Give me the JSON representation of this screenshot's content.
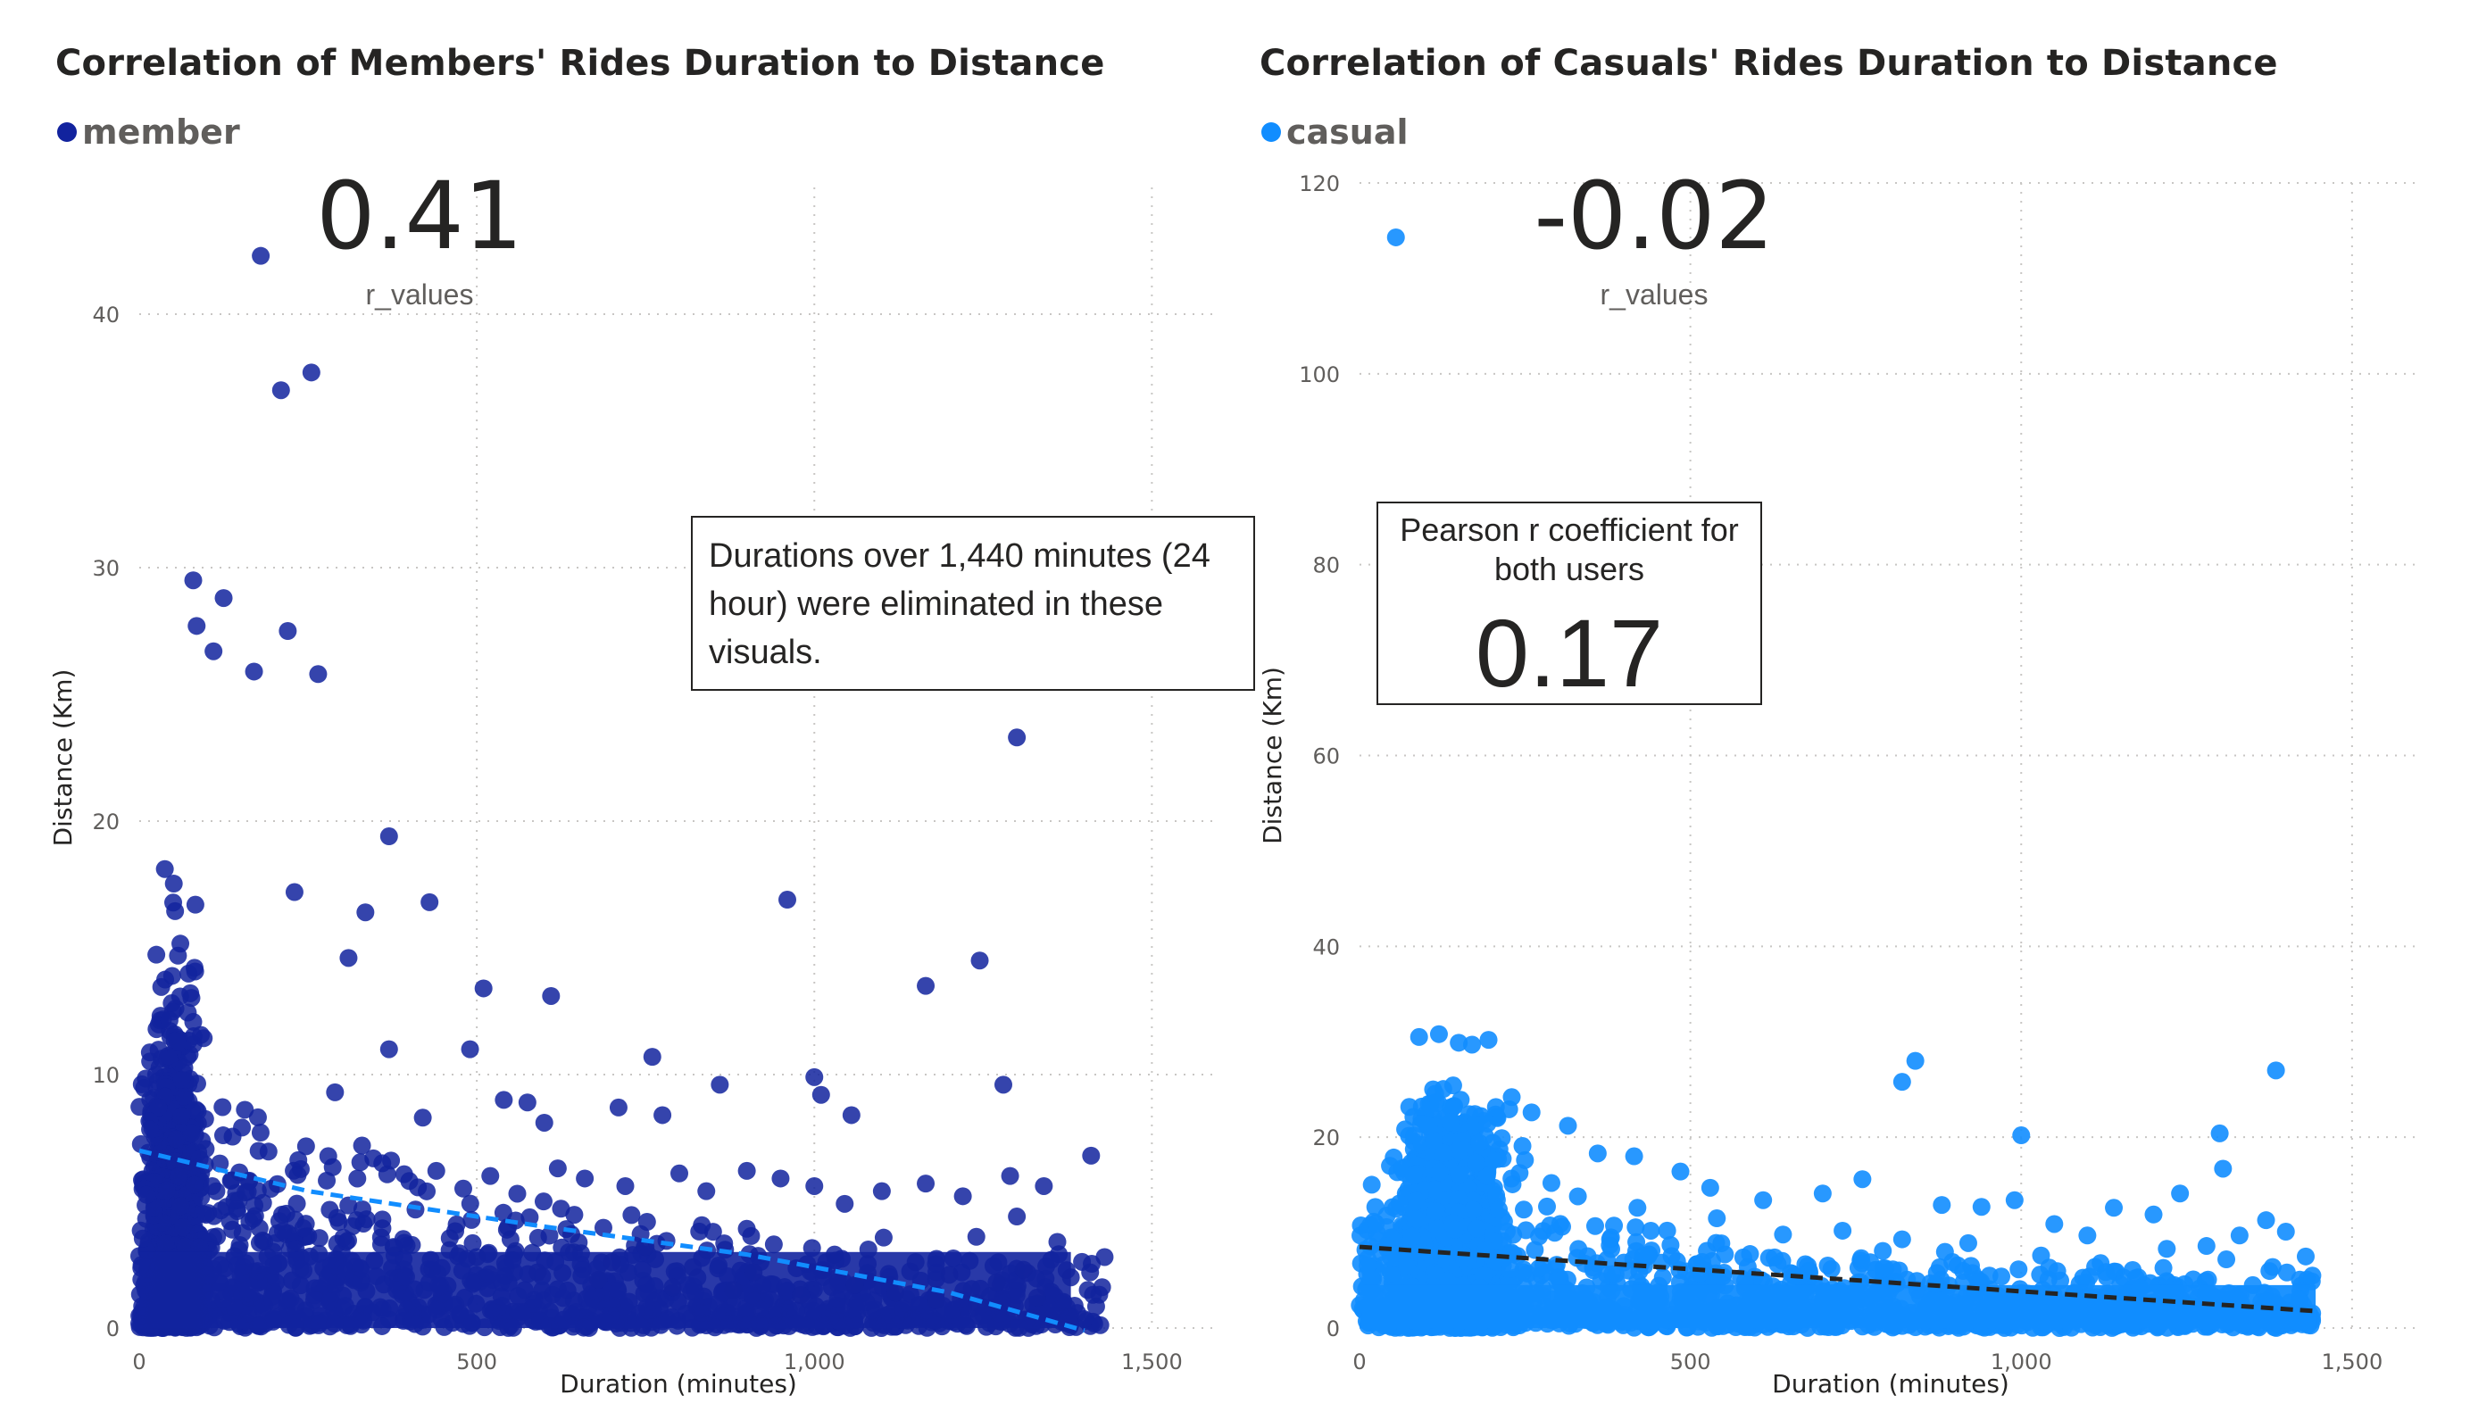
{
  "charts": [
    {
      "id": "members",
      "title": "Correlation of Members' Rides Duration to Distance",
      "legend_label": "member",
      "color": "#12239e",
      "trend_color": "#118dff",
      "kpi_value": "0.41",
      "kpi_caption": "r_values",
      "annotation": "Durations over 1,440 minutes (24 hour) were eliminated in these visuals."
    },
    {
      "id": "casuals",
      "title": "Correlation of Casuals' Rides Duration to Distance",
      "legend_label": "casual",
      "color": "#118dff",
      "trend_color": "#252423",
      "kpi_value": "-0.02",
      "kpi_caption": "r_values",
      "pearson_title": "Pearson r coefficient for both users",
      "pearson_value": "0.17"
    }
  ],
  "chart_data": [
    {
      "type": "scatter",
      "title": "Correlation of Members' Rides Duration to Distance",
      "xlabel": "Duration (minutes)",
      "ylabel": "Distance (Km)",
      "xlim": [
        0,
        1600
      ],
      "ylim": [
        0,
        45
      ],
      "xticks": [
        0,
        500,
        1000,
        1500
      ],
      "xtick_labels": [
        "0",
        "500",
        "1,000",
        "1,500"
      ],
      "yticks": [
        0,
        10,
        20,
        30,
        40
      ],
      "ytick_labels": [
        "0",
        "10",
        "20",
        "30",
        "40"
      ],
      "grid": true,
      "legend": "top-left",
      "series": [
        {
          "name": "member",
          "color": "#12239e",
          "points": [
            [
              180,
              42.3
            ],
            [
              210,
              37
            ],
            [
              255,
              37.7
            ],
            [
              80,
              29.5
            ],
            [
              85,
              27.7
            ],
            [
              125,
              28.8
            ],
            [
              220,
              27.5
            ],
            [
              110,
              26.7
            ],
            [
              170,
              25.9
            ],
            [
              265,
              25.8
            ],
            [
              1300,
              23.3
            ],
            [
              370,
              19.4
            ],
            [
              960,
              16.9
            ],
            [
              430,
              16.8
            ],
            [
              230,
              17.2
            ],
            [
              335,
              16.4
            ],
            [
              1165,
              13.5
            ],
            [
              1245,
              14.5
            ],
            [
              310,
              14.6
            ],
            [
              510,
              13.4
            ],
            [
              610,
              13.1
            ],
            [
              490,
              11
            ],
            [
              760,
              10.7
            ],
            [
              370,
              11
            ],
            [
              1000,
              9.9
            ],
            [
              1280,
              9.6
            ],
            [
              1010,
              9.2
            ],
            [
              860,
              9.6
            ],
            [
              540,
              9
            ],
            [
              575,
              8.9
            ],
            [
              710,
              8.7
            ],
            [
              1055,
              8.4
            ],
            [
              775,
              8.4
            ],
            [
              600,
              8.1
            ],
            [
              420,
              8.3
            ],
            [
              290,
              9.3
            ],
            [
              1410,
              6.8
            ],
            [
              1340,
              5.6
            ],
            [
              1290,
              6
            ],
            [
              1300,
              4.4
            ],
            [
              1220,
              5.2
            ],
            [
              1165,
              5.7
            ],
            [
              1100,
              5.4
            ],
            [
              1045,
              4.9
            ],
            [
              1000,
              5.6
            ],
            [
              950,
              5.9
            ],
            [
              900,
              6.2
            ],
            [
              840,
              5.4
            ],
            [
              800,
              6.1
            ],
            [
              720,
              5.6
            ],
            [
              660,
              5.9
            ],
            [
              620,
              6.3
            ],
            [
              560,
              5.3
            ],
            [
              520,
              6
            ],
            [
              480,
              5.5
            ],
            [
              440,
              6.2
            ],
            [
              400,
              5.8
            ],
            [
              360,
              6.5
            ],
            [
              330,
              7.2
            ],
            [
              1430,
              2.8
            ],
            [
              1405,
              1.5
            ],
            [
              1380,
              2
            ],
            [
              1360,
              3.4
            ],
            [
              1330,
              1.2
            ],
            [
              1310,
              2.3
            ],
            [
              1270,
              1.8
            ],
            [
              1240,
              3.6
            ],
            [
              1200,
              2.1
            ],
            [
              1180,
              1.1
            ],
            [
              1150,
              2.6
            ],
            [
              1120,
              1.4
            ],
            [
              1080,
              3.1
            ],
            [
              1060,
              1.7
            ],
            [
              1030,
              2.9
            ],
            [
              980,
              1.3
            ],
            [
              940,
              3.3
            ],
            [
              910,
              2.2
            ],
            [
              880,
              1.5
            ],
            [
              850,
              3.8
            ],
            [
              820,
              2.4
            ],
            [
              790,
              1.6
            ],
            [
              750,
              3.2
            ],
            [
              700,
              2.6
            ],
            [
              680,
              1.9
            ],
            [
              640,
              3.7
            ],
            [
              590,
              2.2
            ],
            [
              550,
              3.5
            ],
            [
              500,
              2.8
            ]
          ]
        },
        {
          "name": "trend",
          "type": "line",
          "style": "dashed",
          "color": "#118dff",
          "points": [
            [
              0,
              7
            ],
            [
              250,
              5.4
            ],
            [
              600,
              4
            ],
            [
              900,
              2.9
            ],
            [
              1200,
              1.4
            ],
            [
              1400,
              -0.1
            ]
          ]
        }
      ]
    },
    {
      "type": "scatter",
      "title": "Correlation of Casuals' Rides Duration to Distance",
      "xlabel": "Duration (minutes)",
      "ylabel": "Distance (Km)",
      "xlim": [
        0,
        1600
      ],
      "ylim": [
        0,
        120
      ],
      "xticks": [
        0,
        500,
        1000,
        1500
      ],
      "xtick_labels": [
        "0",
        "500",
        "1,000",
        "1,500"
      ],
      "yticks": [
        0,
        20,
        40,
        60,
        80,
        100,
        120
      ],
      "ytick_labels": [
        "0",
        "20",
        "40",
        "60",
        "80",
        "100",
        "120"
      ],
      "grid": true,
      "legend": "top-left",
      "series": [
        {
          "name": "casual",
          "color": "#118dff",
          "points": [
            [
              55,
              114.3
            ],
            [
              840,
              28
            ],
            [
              820,
              25.8
            ],
            [
              1385,
              27
            ],
            [
              1000,
              20.2
            ],
            [
              1300,
              20.4
            ],
            [
              1305,
              16.7
            ],
            [
              90,
              30.5
            ],
            [
              120,
              30.8
            ],
            [
              150,
              29.9
            ],
            [
              170,
              29.7
            ],
            [
              195,
              30.2
            ],
            [
              230,
              24.2
            ],
            [
              260,
              22.6
            ],
            [
              315,
              21.2
            ],
            [
              360,
              18.3
            ],
            [
              415,
              18
            ],
            [
              485,
              16.4
            ],
            [
              530,
              14.7
            ],
            [
              610,
              13.4
            ],
            [
              700,
              14.1
            ],
            [
              760,
              15.6
            ],
            [
              880,
              12.9
            ],
            [
              940,
              12.7
            ],
            [
              990,
              13.4
            ],
            [
              1050,
              10.9
            ],
            [
              1100,
              9.7
            ],
            [
              1140,
              12.6
            ],
            [
              1200,
              11.9
            ],
            [
              1240,
              14.1
            ],
            [
              1280,
              8.6
            ],
            [
              1330,
              9.7
            ],
            [
              1370,
              11.3
            ],
            [
              1400,
              10.1
            ],
            [
              1430,
              7.5
            ],
            [
              1440,
              5.5
            ],
            [
              1420,
              3.1
            ],
            [
              1380,
              6.4
            ],
            [
              1350,
              4.5
            ],
            [
              1310,
              7.2
            ],
            [
              1260,
              5.1
            ],
            [
              1220,
              8.3
            ],
            [
              1180,
              4.2
            ],
            [
              1120,
              6.8
            ],
            [
              1080,
              3.7
            ],
            [
              1030,
              7.6
            ],
            [
              970,
              5.4
            ],
            [
              920,
              8.9
            ],
            [
              870,
              4.6
            ],
            [
              820,
              9.3
            ],
            [
              780,
              6.1
            ],
            [
              730,
              10.2
            ],
            [
              680,
              5.8
            ],
            [
              640,
              9.8
            ],
            [
              580,
              7.4
            ],
            [
              540,
              11.5
            ],
            [
              470,
              8.7
            ],
            [
              420,
              12.6
            ],
            [
              380,
              9.5
            ],
            [
              330,
              13.8
            ],
            [
              290,
              15.2
            ],
            [
              250,
              17.6
            ],
            [
              215,
              19.9
            ]
          ]
        },
        {
          "name": "trend",
          "type": "line",
          "style": "dashed",
          "color": "#252423",
          "points": [
            [
              0,
              8.5
            ],
            [
              1440,
              1.8
            ]
          ]
        }
      ]
    }
  ]
}
